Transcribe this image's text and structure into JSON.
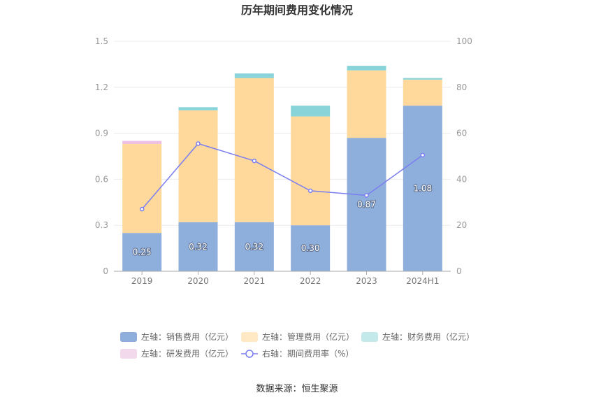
{
  "chart_data": {
    "type": "bar",
    "stacked": true,
    "title": "历年期间费用变化情况",
    "categories": [
      "2019",
      "2020",
      "2021",
      "2022",
      "2023",
      "2024H1"
    ],
    "left_axis": {
      "ylim": [
        0,
        1.5
      ],
      "ticks": [
        "0",
        "0.3",
        "0.6",
        "0.9",
        "1.2",
        "1.5"
      ]
    },
    "right_axis": {
      "ylim": [
        0,
        100
      ],
      "ticks": [
        "0",
        "20",
        "40",
        "60",
        "80",
        "100"
      ]
    },
    "series": [
      {
        "name": "左轴：销售费用（亿元）",
        "axis": "left",
        "color": "#8eaedb",
        "values": [
          0.25,
          0.32,
          0.32,
          0.3,
          0.87,
          1.08
        ],
        "labels": [
          "0.25",
          "0.32",
          "0.32",
          "0.30",
          "0.87",
          "1.08"
        ]
      },
      {
        "name": "左轴：管理费用（亿元）",
        "axis": "left",
        "color": "#ffd99b",
        "values": [
          0.58,
          0.73,
          0.94,
          0.71,
          0.44,
          0.17
        ]
      },
      {
        "name": "左轴：财务费用（亿元）",
        "axis": "left",
        "color": "#88d4d8",
        "values": [
          0.0,
          0.02,
          0.03,
          0.07,
          0.03,
          0.01
        ]
      },
      {
        "name": "左轴：研发费用（亿元）",
        "axis": "left",
        "color": "#eebfe0",
        "values": [
          0.02,
          0.0,
          0.0,
          0.0,
          0.0,
          0.0
        ]
      },
      {
        "name": "右轴：期间费用率（%）",
        "axis": "right",
        "type": "line",
        "color": "#7b7ef0",
        "values": [
          27,
          55.5,
          48,
          35,
          33,
          50.5
        ]
      }
    ],
    "grid": true,
    "legend_position": "bottom"
  },
  "source": "数据来源：恒生聚源"
}
